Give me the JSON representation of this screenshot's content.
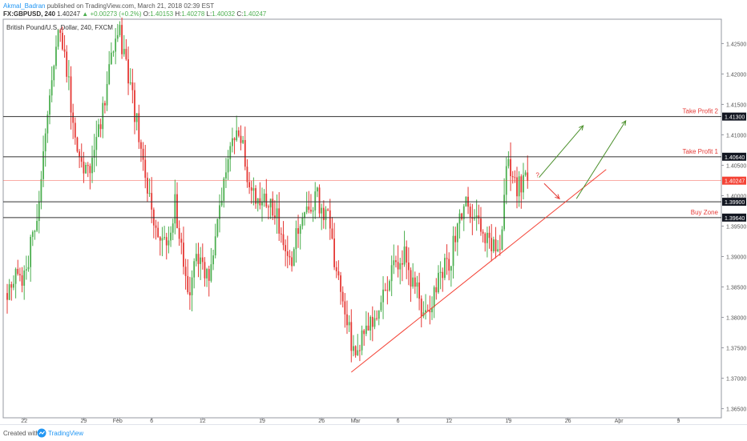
{
  "header": {
    "author": "Akmal_Badran",
    "published": "published on TradingView.com, March 21, 2018 02:39 EST",
    "symbol": "FX:GBPUSD, 240",
    "last": "1.40247",
    "change": "+0.00273 (+0.2%)",
    "open_label": "O:",
    "open": "1.40153",
    "high_label": "H:",
    "high": "1.40278",
    "low_label": "L:",
    "low": "1.40032",
    "close_label": "C:",
    "close": "1.40247"
  },
  "footer": {
    "created": "Created with",
    "brand": "TradingView"
  },
  "colors": {
    "up": "#4caf50",
    "down": "#e53935",
    "accent": "#2196f3",
    "trend": "#f44336",
    "level": "#333333",
    "last": "#f44336",
    "target": "#4a8f2a"
  },
  "chart_data": {
    "type": "candlestick",
    "title": "British Pound/U.S. Dollar, 240, FXCM",
    "ylim": [
      1.3635,
      1.429
    ],
    "y_ticks": [
      1.365,
      1.37,
      1.375,
      1.38,
      1.385,
      1.39,
      1.395,
      1.4,
      1.405,
      1.41,
      1.415,
      1.42,
      1.425
    ],
    "y_tick_labels": [
      "1.36500",
      "1.37000",
      "1.37500",
      "1.38000",
      "1.38500",
      "1.39000",
      "1.39500",
      "1.40000",
      "1.40500",
      "1.41000",
      "1.41500",
      "1.42000",
      "1.42500"
    ],
    "x_range": [
      0,
      61.3
    ],
    "x_ticks": [
      {
        "day": 2,
        "label": "22"
      },
      {
        "day": 9,
        "label": "29"
      },
      {
        "day": 13,
        "label": "Feb"
      },
      {
        "day": 17,
        "label": "6"
      },
      {
        "day": 23,
        "label": "12"
      },
      {
        "day": 30,
        "label": "19"
      },
      {
        "day": 37,
        "label": "26"
      },
      {
        "day": 41,
        "label": "Mar"
      },
      {
        "day": 46,
        "label": "6"
      },
      {
        "day": 52,
        "label": "12"
      },
      {
        "day": 59,
        "label": "19"
      },
      {
        "day": 66,
        "label": "26"
      },
      {
        "day": 72,
        "label": "Apr"
      },
      {
        "day": 79,
        "label": "9"
      }
    ],
    "anchors": [
      [
        0,
        1.384
      ],
      [
        2.5,
        1.388
      ],
      [
        4,
        1.398
      ],
      [
        5.5,
        1.42
      ],
      [
        6.5,
        1.428
      ],
      [
        7.5,
        1.418
      ],
      [
        8.5,
        1.408
      ],
      [
        10,
        1.403
      ],
      [
        11,
        1.41
      ],
      [
        12.5,
        1.422
      ],
      [
        13.5,
        1.427
      ],
      [
        15,
        1.416
      ],
      [
        16.5,
        1.404
      ],
      [
        17.5,
        1.395
      ],
      [
        19,
        1.392
      ],
      [
        20,
        1.399
      ],
      [
        21.5,
        1.383
      ],
      [
        22.5,
        1.39
      ],
      [
        24,
        1.387
      ],
      [
        25,
        1.395
      ],
      [
        26.5,
        1.408
      ],
      [
        27.5,
        1.411
      ],
      [
        28.5,
        1.404
      ],
      [
        30,
        1.399
      ],
      [
        32,
        1.397
      ],
      [
        33.5,
        1.389
      ],
      [
        35,
        1.397
      ],
      [
        36.5,
        1.4
      ],
      [
        38,
        1.396
      ],
      [
        39.5,
        1.384
      ],
      [
        41,
        1.374
      ],
      [
        42.5,
        1.377
      ],
      [
        44,
        1.382
      ],
      [
        45.5,
        1.388
      ],
      [
        47,
        1.39
      ],
      [
        48,
        1.386
      ],
      [
        49.5,
        1.38
      ],
      [
        51,
        1.386
      ],
      [
        52.5,
        1.39
      ],
      [
        54,
        1.399
      ],
      [
        55.5,
        1.396
      ],
      [
        57,
        1.393
      ],
      [
        58.3,
        1.392
      ],
      [
        59.2,
        1.406
      ],
      [
        60.2,
        1.401
      ],
      [
        61.3,
        1.4025
      ]
    ],
    "levels": [
      {
        "price": 1.413,
        "label": "Take Profit 2",
        "tag": "1.41300"
      },
      {
        "price": 1.4064,
        "label": "Take Profit 1",
        "tag": "1.40640"
      },
      {
        "price": 1.399,
        "label": "",
        "tag": "1.39900"
      },
      {
        "price": 1.3964,
        "label": "Buy Zone",
        "tag": "1.39640"
      }
    ],
    "last_price": {
      "price": 1.40247,
      "tag": "1.40247"
    },
    "trendline": {
      "from": [
        40.5,
        1.371
      ],
      "to": [
        70.5,
        1.4043
      ]
    },
    "annotation": {
      "text": "?",
      "day": 62.2,
      "price": 1.403
    },
    "scenario_arrows": [
      {
        "color": "green",
        "from": [
          62.6,
          1.403
        ],
        "to": [
          67.8,
          1.4115
        ]
      },
      {
        "color": "green",
        "from": [
          67.0,
          1.3995
        ],
        "to": [
          72.8,
          1.4123
        ]
      },
      {
        "color": "red",
        "from": [
          63.2,
          1.402
        ],
        "to": [
          65.0,
          1.3995
        ]
      }
    ]
  }
}
